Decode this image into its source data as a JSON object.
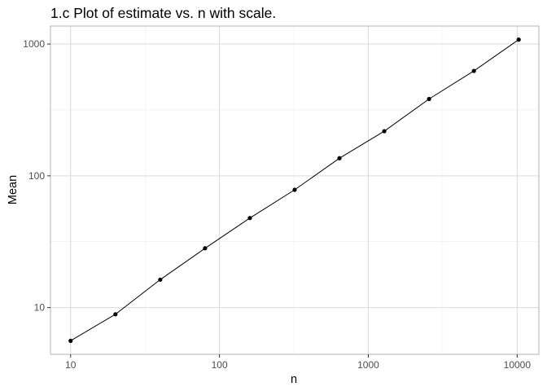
{
  "chart_data": {
    "type": "line",
    "title": "1.c Plot of estimate vs. n with scale.",
    "xlabel": "n",
    "ylabel": "Mean",
    "x_scale": "log10",
    "y_scale": "log10",
    "xlim": [
      10,
      10240
    ],
    "ylim": [
      5.6,
      1080
    ],
    "x_ticks": [
      10,
      100,
      1000,
      10000
    ],
    "x_tick_labels": [
      "10",
      "100",
      "1000",
      "10000"
    ],
    "y_ticks": [
      10,
      100,
      1000
    ],
    "y_tick_labels": [
      "10",
      "100",
      "1000"
    ],
    "grid": true,
    "points_with_line": true,
    "x": [
      10,
      20,
      40,
      80,
      160,
      320,
      640,
      1280,
      2560,
      5120,
      10240
    ],
    "y": [
      5.6,
      8.9,
      16.3,
      28.2,
      47.8,
      78.3,
      136,
      218,
      383,
      625,
      1080
    ],
    "colors": {
      "line": "#000000",
      "point": "#000000",
      "panel_border": "#b3b3b3",
      "grid_major": "#d9d9d9",
      "grid_minor": "#eeeeee"
    }
  }
}
